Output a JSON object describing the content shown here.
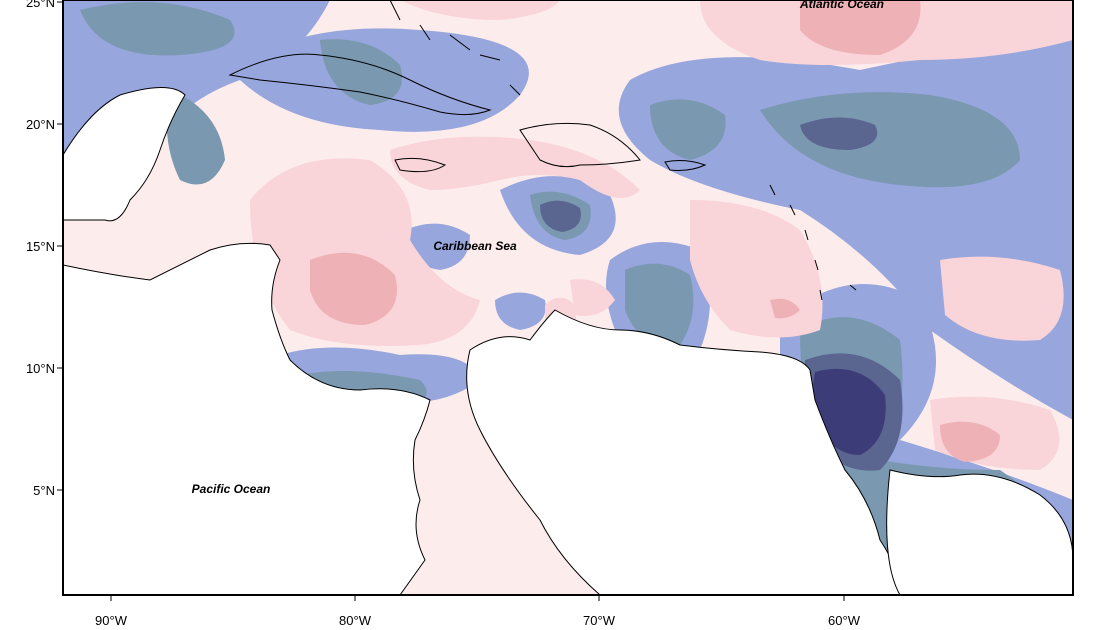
{
  "map": {
    "labels": {
      "atlantic": "Atlantic Ocean",
      "caribbean": "Caribbean Sea",
      "pacific": "Pacific Ocean"
    },
    "lat_ticks": [
      "25°N",
      "20°N",
      "15°N",
      "10°N",
      "5°N"
    ],
    "lon_ticks": [
      "90°W",
      "80°W",
      "70°W",
      "60°W"
    ],
    "extent": {
      "lon": [
        -92,
        -51
      ],
      "lat": [
        1,
        25
      ]
    },
    "color_scale": {
      "strong_negative": "#3c3c78",
      "negative": "#5a6590",
      "moderate_negative": "#7a98b0",
      "weak_negative": "#97a6dc",
      "near_zero_negative": "#c9dde5",
      "near_zero_positive": "#fdecec",
      "weak_positive": "#f9d4d9",
      "positive": "#eeb1b6"
    },
    "land_color": "#ffffff"
  }
}
